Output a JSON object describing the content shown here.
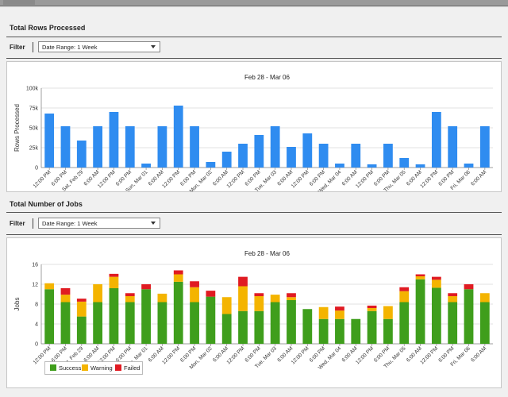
{
  "sections": [
    {
      "title": "Total Rows Processed",
      "filter_label": "Filter",
      "select_value": "Date Range: 1 Week"
    },
    {
      "title": "Total Number of Jobs",
      "filter_label": "Filter",
      "select_value": "Date Range: 1 Week"
    }
  ],
  "colors": {
    "bar": "#2f8cf0",
    "success": "#3f9e1c",
    "warning": "#f4b400",
    "failed": "#e01b22"
  },
  "chart_data": [
    {
      "type": "bar",
      "title": "Feb 28 - Mar 06",
      "xlabel": "",
      "ylabel": "Rows Processed",
      "ylim": [
        0,
        100000
      ],
      "yticks": [
        0,
        25000,
        50000,
        75000,
        100000
      ],
      "ytick_labels": [
        "0",
        "25k",
        "50k",
        "75k",
        "100k"
      ],
      "grid": true,
      "tick_labels": [
        "12:00 PM",
        "6:00 PM",
        "Sat, Feb 29",
        "6:00 AM",
        "12:00 PM",
        "6:00 PM",
        "Sun, Mar 01",
        "6:00 AM",
        "12:00 PM",
        "6:00 PM",
        "Mon, Mar 02",
        "6:00 AM",
        "12:00 PM",
        "6:00 PM",
        "Tue, Mar 03",
        "6:00 AM",
        "12:00 PM",
        "6:00 PM",
        "Wed, Mar 04",
        "6:00 AM",
        "12:00 PM",
        "6:00 PM",
        "Thu, Mar 05",
        "6:00 AM",
        "12:00 PM",
        "6:00 PM",
        "Fri, Mar 06",
        "6:00 AM"
      ],
      "values": [
        68000,
        52000,
        34000,
        52000,
        70000,
        52000,
        5000,
        52000,
        78000,
        52000,
        7000,
        20000,
        30000,
        41000,
        52000,
        26000,
        43000,
        30000,
        5000,
        30000,
        4000,
        30000,
        12000,
        4000,
        70000,
        52000,
        5000,
        52000
      ]
    },
    {
      "type": "bar",
      "stacked": true,
      "title": "Feb 28 - Mar 06",
      "xlabel": "",
      "ylabel": "Jobs",
      "ylim": [
        0,
        16
      ],
      "yticks": [
        0,
        4,
        8,
        12,
        16
      ],
      "grid": true,
      "legend_position": "bottom-left",
      "tick_labels": [
        "12:00 PM",
        "6:00 PM",
        "Sat, Feb 29",
        "6:00 AM",
        "12:00 PM",
        "6:00 PM",
        "Sun, Mar 01",
        "6:00 AM",
        "12:00 PM",
        "6:00 PM",
        "Mon, Mar 02",
        "6:00 AM",
        "12:00 PM",
        "6:00 PM",
        "Tue, Mar 03",
        "6:00 AM",
        "12:00 PM",
        "6:00 PM",
        "Wed, Mar 04",
        "6:00 AM",
        "12:00 PM",
        "6:00 PM",
        "Thu, Mar 05",
        "6:00 AM",
        "12:00 PM",
        "6:00 PM",
        "Fri, Mar 06",
        "6:00 AM"
      ],
      "series": [
        {
          "name": "Success",
          "values": [
            11,
            8.4,
            5.5,
            8.4,
            11.2,
            8.4,
            11,
            8.4,
            12.5,
            8.4,
            9.5,
            6,
            6.6,
            6.6,
            8.4,
            8.8,
            7,
            5,
            5,
            5,
            6.6,
            5,
            8.4,
            13,
            11.3,
            8.4,
            11,
            8.4
          ]
        },
        {
          "name": "Warning",
          "values": [
            1.2,
            1.5,
            3,
            3.6,
            2.3,
            1.2,
            0,
            1.7,
            1.5,
            3,
            0,
            3.4,
            5,
            3,
            1.5,
            0.6,
            0,
            2.4,
            1.7,
            0,
            0.6,
            2.6,
            2.2,
            0.6,
            1.6,
            1.2,
            0,
            1.8
          ]
        },
        {
          "name": "Failed",
          "values": [
            0,
            1.3,
            0.6,
            0,
            0.6,
            0.6,
            1,
            0,
            0.8,
            1.2,
            1.2,
            0,
            1.9,
            0.6,
            0,
            0.8,
            0,
            0,
            0.8,
            0,
            0.5,
            0,
            0.8,
            0.4,
            0.6,
            0.6,
            1,
            0
          ]
        }
      ]
    }
  ]
}
